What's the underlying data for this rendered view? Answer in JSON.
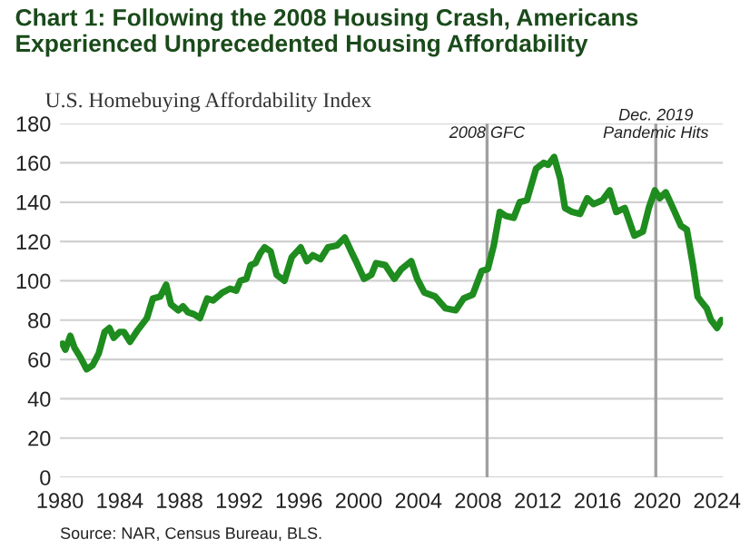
{
  "chart_data": {
    "type": "line",
    "title": "Chart 1: Following the 2008 Housing Crash, Americans Experienced Unprecedented Housing Affordability",
    "subtitle": "U.S. Homebuying Affordability Index",
    "annotations": [
      "Source: NAR, Census Bureau, BLS."
    ],
    "series": [
      {
        "color": "#1e8c1e",
        "x": [
          1980.16,
          1980.36,
          1980.69,
          1980.97,
          1981.37,
          1981.78,
          1982.18,
          1982.59,
          1982.99,
          1983.31,
          1983.6,
          1984.0,
          1984.28,
          1984.69,
          1985.21,
          1985.82,
          1986.22,
          1986.71,
          1987.11,
          1987.43,
          1987.92,
          1988.24,
          1988.57,
          1988.97,
          1989.37,
          1989.86,
          1990.26,
          1990.87,
          1991.39,
          1991.8,
          1992.08,
          1992.48,
          1992.77,
          1993.09,
          1993.41,
          1993.7,
          1994.1,
          1994.51,
          1995.03,
          1995.52,
          1996.12,
          1996.53,
          1996.93,
          1997.45,
          1997.94,
          1998.55,
          1999.07,
          1999.56,
          1999.88,
          2000.36,
          2000.85,
          2001.17,
          2001.78,
          2002.39,
          2002.87,
          2003.52,
          2003.92,
          2004.4,
          2005.13,
          2005.82,
          2006.5,
          2007.03,
          2007.64,
          2008.24,
          2008.65,
          2009.05,
          2009.45,
          2009.86,
          2010.38,
          2010.79,
          2011.27,
          2011.88,
          2012.4,
          2012.69,
          2013.09,
          2013.5,
          2013.82,
          2014.3,
          2014.83,
          2015.31,
          2015.72,
          2016.33,
          2016.81,
          2017.25,
          2017.82,
          2018.46,
          2019.03,
          2019.43,
          2019.84,
          2020.16,
          2020.57,
          2021.05,
          2021.58,
          2021.98,
          2022.39,
          2022.7,
          2022.99,
          2023.31,
          2023.6,
          2024.0,
          2024.3
        ],
        "values": [
          68,
          65,
          72,
          66,
          61,
          55,
          57,
          63,
          74,
          76,
          71,
          74,
          74,
          69,
          75,
          81,
          91,
          92,
          98,
          88,
          85,
          87,
          84,
          83,
          81,
          91,
          90,
          94,
          96,
          95,
          100,
          101,
          108,
          109,
          114,
          117,
          115,
          103,
          100,
          112,
          117,
          110,
          113,
          111,
          117,
          118,
          122,
          114,
          109,
          101,
          103,
          109,
          108,
          101,
          106,
          110,
          101,
          94,
          92,
          86,
          85,
          91,
          93,
          105,
          106,
          118,
          135,
          133,
          132,
          140,
          141,
          157,
          160,
          159,
          163,
          152,
          137,
          135,
          134,
          142,
          139,
          141,
          146,
          135,
          137,
          123,
          125,
          137,
          146,
          142,
          145,
          137,
          128,
          126,
          108,
          92,
          89,
          86,
          80,
          76,
          80
        ]
      }
    ],
    "xlim": [
      1980,
      2024.4
    ],
    "xticks": [
      1980,
      1984,
      1988,
      1992,
      1996,
      2000,
      2004,
      2008,
      2012,
      2016,
      2020,
      2024
    ],
    "ylim": [
      0,
      180
    ],
    "yticks": [
      0,
      20,
      40,
      60,
      80,
      100,
      120,
      140,
      160,
      180
    ],
    "grid": "y",
    "ref_lines": [
      {
        "axis": "x",
        "value": 2008.6,
        "label": "2008 GFC",
        "color": "#a0a0a0"
      },
      {
        "axis": "x",
        "value": 2019.9,
        "label": "Dec. 2019\nPandemic Hits",
        "color": "#a0a0a0"
      }
    ]
  }
}
